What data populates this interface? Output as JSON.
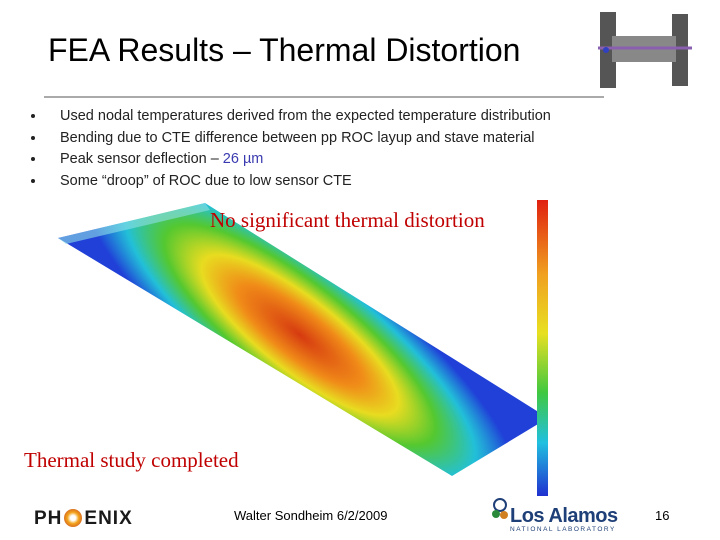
{
  "header": {
    "title": "FEA Results – Thermal Distortion"
  },
  "bullets": [
    "Used nodal temperatures derived from the expected temperature distribution",
    "Bending due to CTE difference between pp ROC layup and stave material",
    {
      "text": "Peak sensor deflection –",
      "highlight": "26 µm"
    },
    "Some “droop” of ROC due to low sensor CTE"
  ],
  "callouts": [
    "No significant thermal distortion",
    "Thermal study completed"
  ],
  "footer": {
    "author": "Walter Sondheim 6/2/2009",
    "page": "16"
  },
  "logos": {
    "phenix": [
      "PH",
      "ENIX"
    ],
    "los_alamos": [
      "Los Alamos",
      "NATIONAL LABORATORY"
    ]
  }
}
